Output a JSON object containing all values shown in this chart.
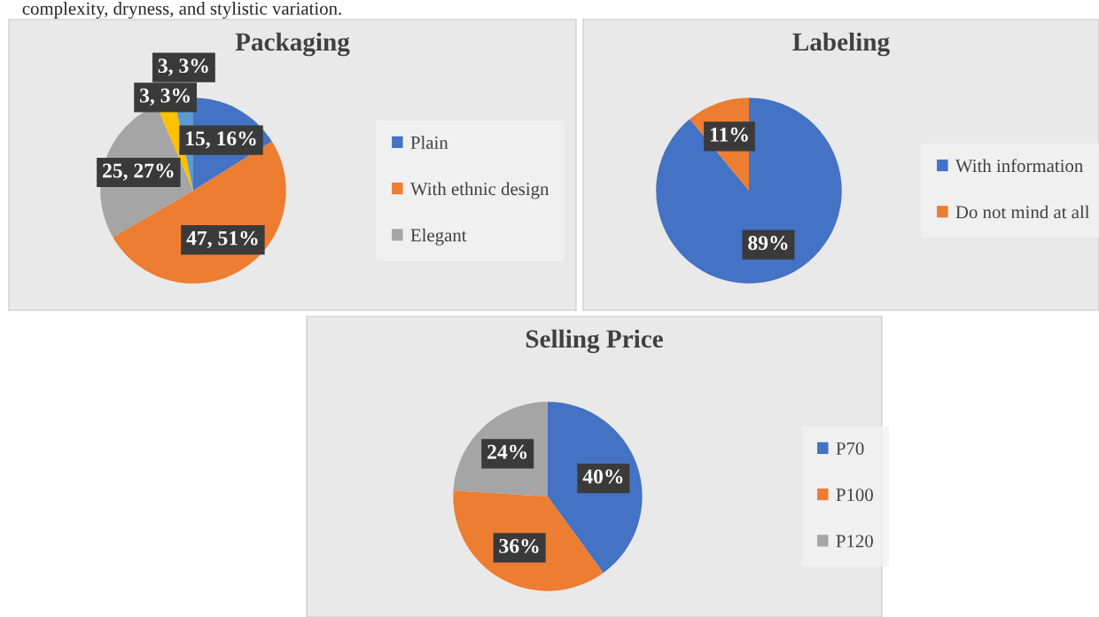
{
  "chart_data": [
    {
      "type": "pie",
      "title": "Packaging",
      "categories": [
        "Plain",
        "With ethnic design",
        "Elegant",
        null,
        null
      ],
      "values": [
        15,
        47,
        25,
        3,
        3
      ],
      "colors": [
        "#4472c4",
        "#ed7d31",
        "#a5a5a5",
        "#ffc000",
        "#5b9bd5"
      ],
      "value_labels": [
        "15, 16%",
        "47, 51%",
        "25, 27%",
        "3, 3%",
        "3, 3%"
      ],
      "legend": "right",
      "annotations": [
        "complexity, dryness, and stylistic variation."
      ]
    },
    {
      "type": "pie",
      "title": "Labeling",
      "categories": [
        "With information",
        "Do not mind at all"
      ],
      "values": [
        89,
        11
      ],
      "colors": [
        "#4472c4",
        "#ed7d31"
      ],
      "value_labels": [
        "89%",
        "11%"
      ],
      "legend": "right"
    },
    {
      "type": "pie",
      "title": "Selling Price",
      "categories": [
        "P70",
        "P100",
        "P120"
      ],
      "values": [
        40,
        36,
        24
      ],
      "colors": [
        "#4472c4",
        "#ed7d31",
        "#a5a5a5"
      ],
      "value_labels": [
        "40%",
        "36%",
        "24%"
      ],
      "legend": "right"
    }
  ]
}
